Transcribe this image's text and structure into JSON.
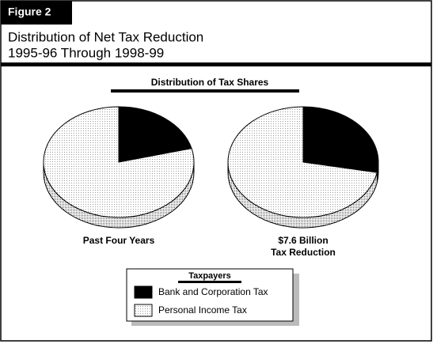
{
  "figure_label": "Figure 2",
  "title_lines": [
    "Distribution of Net Tax Reduction",
    "1995-96 Through 1998-99"
  ],
  "subtitle": "Distribution of Tax Shares",
  "legend_title": "Taxpayers",
  "chart_data": [
    {
      "type": "pie",
      "label": "Past Four Years",
      "categories": [
        "Bank and Corporation Tax",
        "Personal Income Tax"
      ],
      "values": [
        21,
        79
      ],
      "colors": [
        "#000000",
        "#9a9a9a"
      ]
    },
    {
      "type": "pie",
      "label": "$7.6 Billion\nTax Reduction",
      "categories": [
        "Bank and Corporation Tax",
        "Personal Income Tax"
      ],
      "values": [
        28,
        72
      ],
      "colors": [
        "#000000",
        "#9a9a9a"
      ]
    }
  ]
}
